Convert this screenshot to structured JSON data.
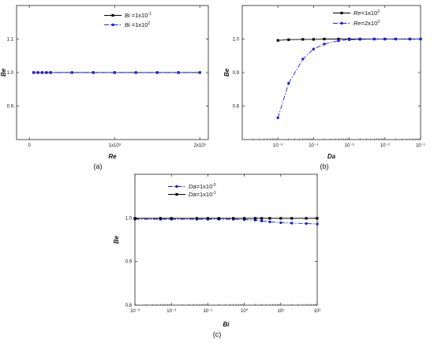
{
  "chart_data": [
    {
      "type": "line",
      "panel_label": "(a)",
      "xlabel": "Re",
      "ylabel": "Be",
      "xlim": [
        -150,
        2100
      ],
      "ylim": [
        0.8,
        1.2
      ],
      "x_ticks": [
        {
          "value": 0,
          "label": "0"
        },
        {
          "value": 1000,
          "label": "1x10³"
        },
        {
          "value": 2000,
          "label": "2x10³"
        }
      ],
      "y_ticks": [
        {
          "value": 0.9,
          "label": "0.9"
        },
        {
          "value": 1.0,
          "label": "1.0"
        },
        {
          "value": 1.1,
          "label": "1.1"
        }
      ],
      "legend_position": "top-right",
      "series": [
        {
          "name": "Bi =1x10⁻¹",
          "name_var": "Bi",
          "name_rest": " =1x10",
          "name_exp": "-1",
          "color": "#000000",
          "dash": "solid",
          "x": [
            50,
            100,
            150,
            200,
            250,
            500,
            750,
            1000,
            1250,
            1500,
            1750,
            2000
          ],
          "values": [
            1,
            1,
            1,
            1,
            1,
            1,
            1,
            1,
            1,
            1,
            1,
            1
          ]
        },
        {
          "name": "Bi =1x10²",
          "name_var": "Bi",
          "name_rest": " =1x10",
          "name_exp": "2",
          "color": "#1f1fdc",
          "dash": "dashdot",
          "x": [
            50,
            100,
            150,
            200,
            250,
            500,
            750,
            1000,
            1250,
            1500,
            1750,
            2000
          ],
          "values": [
            1,
            1,
            1,
            1,
            1,
            1,
            1,
            1,
            1,
            1,
            1,
            1
          ]
        }
      ]
    },
    {
      "type": "line",
      "panel_label": "(b)",
      "xlabel": "Da",
      "ylabel": "Be",
      "x_scale": "log",
      "xlim": [
        1e-06,
        0.1
      ],
      "ylim": [
        0.7,
        1.1
      ],
      "x_ticks": [
        {
          "value": 1e-05,
          "label": "10⁻⁵"
        },
        {
          "value": 0.0001,
          "label": "10⁻⁴"
        },
        {
          "value": 0.001,
          "label": "10⁻³"
        },
        {
          "value": 0.01,
          "label": "10⁻²"
        },
        {
          "value": 0.1,
          "label": "10⁻¹"
        }
      ],
      "y_ticks": [
        {
          "value": 0.8,
          "label": "0.8"
        },
        {
          "value": 0.9,
          "label": "0.9"
        },
        {
          "value": 1.0,
          "label": "1.0"
        }
      ],
      "legend_position": "top-right",
      "series": [
        {
          "name": "Re=1x10²",
          "name_var": "Re",
          "name_rest": "=1x10",
          "name_exp": "2",
          "color": "#000000",
          "dash": "solid",
          "x": [
            1e-05,
            2e-05,
            5e-05,
            0.0001,
            0.0002,
            0.0005,
            0.001,
            0.002,
            0.005,
            0.01,
            0.02,
            0.05,
            0.1
          ],
          "values": [
            0.996,
            0.998,
            0.999,
            0.999,
            1.0,
            1.0,
            1.0,
            1.0,
            1.0,
            1.0,
            1.0,
            1.0,
            1.0
          ]
        },
        {
          "name": "Re=2x10³",
          "name_var": "Re",
          "name_rest": "=2x10",
          "name_exp": "3",
          "color": "#1f1fdc",
          "dash": "dashdot",
          "x": [
            1e-05,
            2e-05,
            5e-05,
            0.0001,
            0.0002,
            0.0005,
            0.001,
            0.002,
            0.005,
            0.01,
            0.02,
            0.05,
            0.1
          ],
          "values": [
            0.765,
            0.868,
            0.94,
            0.97,
            0.985,
            0.995,
            0.998,
            0.999,
            1.0,
            1.0,
            1.0,
            1.0,
            1.0
          ]
        }
      ]
    },
    {
      "type": "line",
      "panel_label": "(c)",
      "xlabel": "Bi",
      "ylabel": "Be",
      "x_scale": "log",
      "xlim": [
        0.001,
        100
      ],
      "ylim": [
        0.8,
        1.1
      ],
      "x_ticks": [
        {
          "value": 0.001,
          "label": "10⁻³"
        },
        {
          "value": 0.01,
          "label": "10⁻²"
        },
        {
          "value": 0.1,
          "label": "10⁻¹"
        },
        {
          "value": 1,
          "label": "10⁰"
        },
        {
          "value": 10,
          "label": "10¹"
        },
        {
          "value": 100,
          "label": "10²"
        }
      ],
      "y_ticks": [
        {
          "value": 0.8,
          "label": "0.8"
        },
        {
          "value": 0.9,
          "label": "0.9"
        },
        {
          "value": 1.0,
          "label": "1.0"
        }
      ],
      "legend_position": "top-center",
      "series": [
        {
          "name": "Da=1x10⁻⁵",
          "name_var": "Da",
          "name_rest": "=1x10",
          "name_exp": "-5",
          "color": "#1f1fdc",
          "dash": "dashdot",
          "x": [
            0.001,
            0.005,
            0.01,
            0.05,
            0.1,
            0.2,
            0.5,
            1,
            2,
            3,
            5,
            10,
            20,
            50,
            100
          ],
          "values": [
            0.997,
            0.997,
            0.997,
            0.997,
            0.997,
            0.997,
            0.997,
            0.996,
            0.995,
            0.993,
            0.991,
            0.989,
            0.988,
            0.987,
            0.986
          ]
        },
        {
          "name": "Da=1x10⁻¹",
          "name_var": "Da",
          "name_rest": "=1x10",
          "name_exp": "-1",
          "color": "#000000",
          "dash": "solid",
          "x": [
            0.001,
            0.005,
            0.01,
            0.05,
            0.1,
            0.2,
            0.5,
            1,
            2,
            3,
            5,
            10,
            20,
            50,
            100
          ],
          "values": [
            0.999,
            0.999,
            0.999,
            0.999,
            0.999,
            0.999,
            0.999,
            0.999,
            0.999,
            0.999,
            0.999,
            0.999,
            0.999,
            0.999,
            0.999
          ]
        }
      ]
    }
  ]
}
